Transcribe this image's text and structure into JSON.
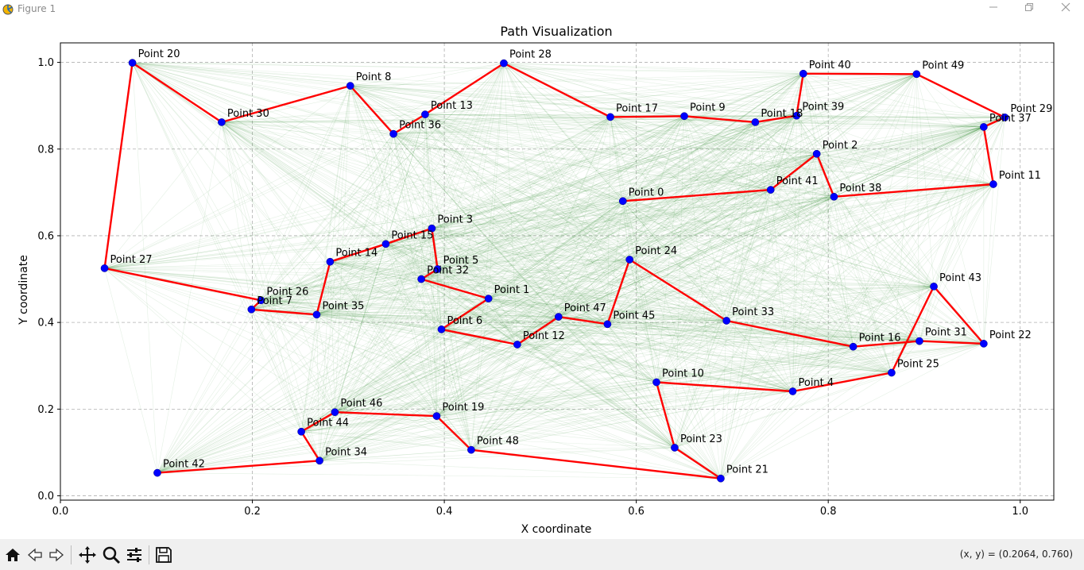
{
  "window": {
    "title": "Figure 1",
    "controls": [
      "minimize",
      "restore",
      "close"
    ]
  },
  "toolbar": {
    "buttons": [
      {
        "icon": "home-icon"
      },
      {
        "icon": "back-arrow-icon"
      },
      {
        "icon": "forward-arrow-icon"
      },
      {
        "icon": "pan-icon"
      },
      {
        "icon": "zoom-icon"
      },
      {
        "icon": "configure-subplots-icon"
      },
      {
        "icon": "save-icon"
      }
    ],
    "coords": "(x, y) = (0.2064, 0.760)"
  },
  "chart_data": {
    "type": "scatter",
    "title": "Path Visualization",
    "xlabel": "X coordinate",
    "ylabel": "Y coordinate",
    "xlim": [
      0.0,
      1.035
    ],
    "ylim": [
      -0.01,
      1.045
    ],
    "xticks": [
      "0.0",
      "0.2",
      "0.4",
      "0.6",
      "0.8",
      "1.0"
    ],
    "yticks": [
      "0.0",
      "0.2",
      "0.4",
      "0.6",
      "0.8",
      "1.0"
    ],
    "grid": true,
    "colors": {
      "points": "#0000ff",
      "path": "#ff0000",
      "edges": "#2e8b2e",
      "grid": "#b0b0b0"
    },
    "points": [
      {
        "label": "Point 0",
        "x": 0.586,
        "y": 0.68
      },
      {
        "label": "Point 1",
        "x": 0.446,
        "y": 0.455
      },
      {
        "label": "Point 2",
        "x": 0.788,
        "y": 0.789
      },
      {
        "label": "Point 3",
        "x": 0.387,
        "y": 0.617
      },
      {
        "label": "Point 4",
        "x": 0.763,
        "y": 0.241
      },
      {
        "label": "Point 5",
        "x": 0.393,
        "y": 0.523
      },
      {
        "label": "Point 6",
        "x": 0.397,
        "y": 0.384
      },
      {
        "label": "Point 7",
        "x": 0.199,
        "y": 0.43
      },
      {
        "label": "Point 8",
        "x": 0.302,
        "y": 0.946
      },
      {
        "label": "Point 9",
        "x": 0.65,
        "y": 0.876
      },
      {
        "label": "Point 10",
        "x": 0.621,
        "y": 0.262
      },
      {
        "label": "Point 11",
        "x": 0.972,
        "y": 0.719
      },
      {
        "label": "Point 12",
        "x": 0.476,
        "y": 0.349
      },
      {
        "label": "Point 13",
        "x": 0.38,
        "y": 0.88
      },
      {
        "label": "Point 14",
        "x": 0.281,
        "y": 0.54
      },
      {
        "label": "Point 15",
        "x": 0.339,
        "y": 0.581
      },
      {
        "label": "Point 16",
        "x": 0.826,
        "y": 0.344
      },
      {
        "label": "Point 17",
        "x": 0.573,
        "y": 0.874
      },
      {
        "label": "Point 18",
        "x": 0.724,
        "y": 0.862
      },
      {
        "label": "Point 19",
        "x": 0.392,
        "y": 0.184
      },
      {
        "label": "Point 20",
        "x": 0.075,
        "y": 0.999
      },
      {
        "label": "Point 21",
        "x": 0.688,
        "y": 0.04
      },
      {
        "label": "Point 22",
        "x": 0.962,
        "y": 0.351
      },
      {
        "label": "Point 23",
        "x": 0.64,
        "y": 0.111
      },
      {
        "label": "Point 24",
        "x": 0.593,
        "y": 0.545
      },
      {
        "label": "Point 25",
        "x": 0.866,
        "y": 0.284
      },
      {
        "label": "Point 26",
        "x": 0.209,
        "y": 0.451
      },
      {
        "label": "Point 27",
        "x": 0.046,
        "y": 0.525
      },
      {
        "label": "Point 28",
        "x": 0.462,
        "y": 0.998
      },
      {
        "label": "Point 29",
        "x": 0.984,
        "y": 0.873
      },
      {
        "label": "Point 30",
        "x": 0.168,
        "y": 0.862
      },
      {
        "label": "Point 31",
        "x": 0.895,
        "y": 0.357
      },
      {
        "label": "Point 32",
        "x": 0.376,
        "y": 0.5
      },
      {
        "label": "Point 33",
        "x": 0.694,
        "y": 0.404
      },
      {
        "label": "Point 34",
        "x": 0.27,
        "y": 0.081
      },
      {
        "label": "Point 35",
        "x": 0.267,
        "y": 0.418
      },
      {
        "label": "Point 36",
        "x": 0.347,
        "y": 0.835
      },
      {
        "label": "Point 37",
        "x": 0.962,
        "y": 0.851
      },
      {
        "label": "Point 38",
        "x": 0.806,
        "y": 0.69
      },
      {
        "label": "Point 39",
        "x": 0.767,
        "y": 0.877
      },
      {
        "label": "Point 40",
        "x": 0.774,
        "y": 0.974
      },
      {
        "label": "Point 41",
        "x": 0.74,
        "y": 0.706
      },
      {
        "label": "Point 42",
        "x": 0.101,
        "y": 0.053
      },
      {
        "label": "Point 43",
        "x": 0.91,
        "y": 0.483
      },
      {
        "label": "Point 44",
        "x": 0.251,
        "y": 0.148
      },
      {
        "label": "Point 45",
        "x": 0.57,
        "y": 0.396
      },
      {
        "label": "Point 46",
        "x": 0.286,
        "y": 0.193
      },
      {
        "label": "Point 47",
        "x": 0.519,
        "y": 0.413
      },
      {
        "label": "Point 48",
        "x": 0.428,
        "y": 0.106
      },
      {
        "label": "Point 49",
        "x": 0.892,
        "y": 0.973
      }
    ],
    "path": [
      0,
      41,
      2,
      39,
      40,
      49,
      29,
      37,
      11,
      38,
      41,
      0
    ],
    "path_full": [
      20,
      30,
      8,
      36,
      13,
      28,
      17,
      9,
      18,
      39,
      40,
      49,
      29,
      37,
      11,
      38,
      41,
      0
    ],
    "path_segments": [
      [
        27,
        20,
        30,
        8,
        36,
        13,
        28,
        17,
        9,
        18,
        39,
        40,
        49,
        29,
        37,
        11,
        38,
        2,
        41,
        0
      ],
      [
        27,
        26,
        7,
        35,
        14,
        15,
        3,
        5,
        32,
        1,
        6,
        12,
        47,
        45,
        24,
        33,
        16,
        31,
        22,
        43,
        25,
        4,
        10,
        23,
        21,
        48,
        19,
        46,
        44,
        34,
        42
      ]
    ]
  }
}
